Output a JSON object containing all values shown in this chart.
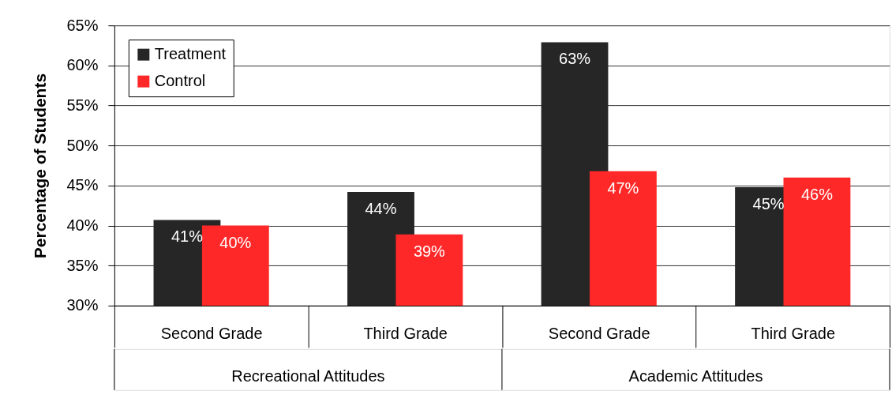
{
  "chart_data": {
    "type": "bar",
    "ylabel": "Percentage of Students",
    "categories": [
      "Second Grade",
      "Third Grade",
      "Second Grade",
      "Third Grade"
    ],
    "series": [
      {
        "name": "Treatment",
        "color": "#262626",
        "values": [
          40.7,
          44.2,
          62.9,
          44.8
        ],
        "value_labels": [
          "41%",
          "44%",
          "63%",
          "45%"
        ]
      },
      {
        "name": "Control",
        "color": "#ff2828",
        "values": [
          40.0,
          38.9,
          46.8,
          46.0
        ],
        "value_labels": [
          "40%",
          "39%",
          "47%",
          "46%"
        ]
      }
    ],
    "ylim": [
      30,
      65
    ],
    "yticks": [
      {
        "value": 30,
        "label": "30%"
      },
      {
        "value": 35,
        "label": "35%"
      },
      {
        "value": 40,
        "label": "40%"
      },
      {
        "value": 45,
        "label": "45%"
      },
      {
        "value": 50,
        "label": "50%"
      },
      {
        "value": 55,
        "label": "55%"
      },
      {
        "value": 60,
        "label": "60%"
      },
      {
        "value": 65,
        "label": "65%"
      }
    ],
    "grid": "y",
    "legend": "top left",
    "annotations": [
      "Recreational Attitudes",
      "Academic Attitudes"
    ]
  }
}
